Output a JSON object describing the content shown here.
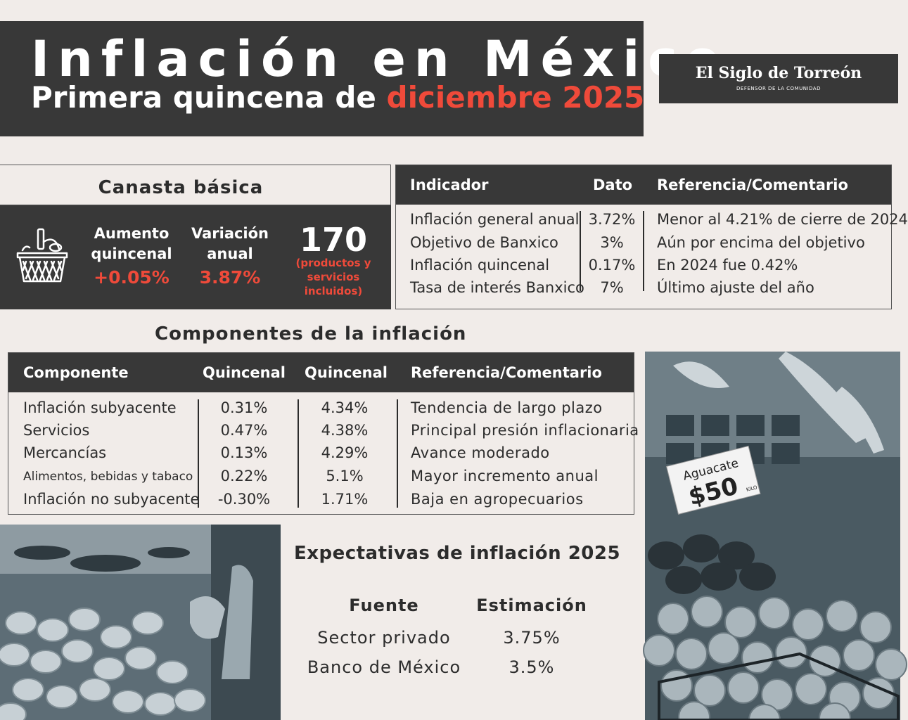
{
  "header": {
    "title": "Inflación en México",
    "subtitle_prefix": "Primera quincena de ",
    "subtitle_highlight": "diciembre 2025",
    "logo_name": "El Siglo de Torreón",
    "logo_tagline": "DEFENSOR DE LA COMUNIDAD"
  },
  "canasta": {
    "title": "Canasta básica",
    "aumento_label_1": "Aumento",
    "aumento_label_2": "quincenal",
    "aumento_value": "+0.05%",
    "variacion_label_1": "Variación",
    "variacion_label_2": "anual",
    "variacion_value": "3.87%",
    "productos_count": "170",
    "productos_note_1": "(productos y",
    "productos_note_2": "servicios incluidos)",
    "icon": "basket-icon"
  },
  "indicadores": {
    "headers": [
      "Indicador",
      "Dato",
      "Referencia/Comentario"
    ],
    "rows": [
      [
        "Inflación general anual",
        "3.72%",
        "Menor al 4.21% de cierre de 2024"
      ],
      [
        "Objetivo de Banxico",
        "3%",
        "Aún por encima del objetivo"
      ],
      [
        "Inflación quincenal",
        "0.17%",
        "En 2024 fue 0.42%"
      ],
      [
        "Tasa de interés Banxico",
        "7%",
        "Último ajuste del año"
      ]
    ]
  },
  "componentes": {
    "title": "Componentes de la inflación",
    "headers": [
      "Componente",
      "Quincenal",
      "Quincenal",
      "Referencia/Comentario"
    ],
    "rows": [
      [
        "Inflación subyacente",
        "0.31%",
        "4.34%",
        "Tendencia de largo plazo"
      ],
      [
        "Servicios",
        "0.47%",
        "4.38%",
        "Principal presión inflacionaria"
      ],
      [
        "Mercancías",
        "0.13%",
        "4.29%",
        "Avance moderado"
      ],
      [
        "Alimentos, bebidas y tabaco",
        "0.22%",
        "5.1%",
        "Mayor incremento anual"
      ],
      [
        "Inflación no subyacente",
        "-0.30%",
        "1.71%",
        "Baja en agropecuarios"
      ]
    ]
  },
  "expectativas": {
    "title": "Expectativas de inflación 2025",
    "headers": [
      "Fuente",
      "Estimación"
    ],
    "rows": [
      [
        "Sector privado",
        "3.75%"
      ],
      [
        "Banco de México",
        "3.5%"
      ]
    ]
  },
  "photo_right": {
    "sign_line1": "Aguacate",
    "sign_line2": "$50",
    "sign_unit": "KILO"
  },
  "colors": {
    "dark": "#383838",
    "accent": "#ef4a3a",
    "background": "#f1ece9"
  }
}
